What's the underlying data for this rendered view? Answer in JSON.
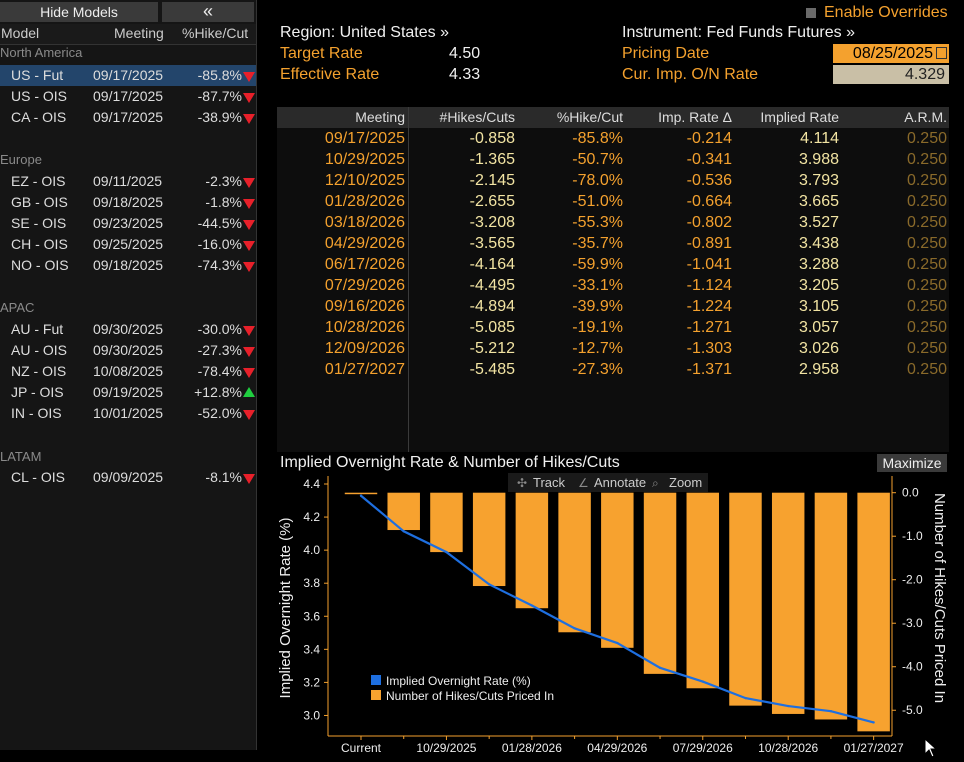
{
  "sidebar": {
    "hide_models_label": "Hide Models",
    "collapse_label": "«",
    "header": {
      "model": "Model",
      "meeting": "Meeting",
      "pct": "%Hike/Cut"
    },
    "groups": [
      {
        "label": "North America",
        "rows": [
          {
            "model": "US - Fut",
            "meeting": "09/17/2025",
            "pct": "-85.8%",
            "dir": "down",
            "selected": true
          },
          {
            "model": "US - OIS",
            "meeting": "09/17/2025",
            "pct": "-87.7%",
            "dir": "down"
          },
          {
            "model": "CA - OIS",
            "meeting": "09/17/2025",
            "pct": "-38.9%",
            "dir": "down"
          }
        ]
      },
      {
        "label": "Europe",
        "rows": [
          {
            "model": "EZ - OIS",
            "meeting": "09/11/2025",
            "pct": "-2.3%",
            "dir": "down"
          },
          {
            "model": "GB - OIS",
            "meeting": "09/18/2025",
            "pct": "-1.8%",
            "dir": "down"
          },
          {
            "model": "SE - OIS",
            "meeting": "09/23/2025",
            "pct": "-44.5%",
            "dir": "down"
          },
          {
            "model": "CH - OIS",
            "meeting": "09/25/2025",
            "pct": "-16.0%",
            "dir": "down"
          },
          {
            "model": "NO - OIS",
            "meeting": "09/18/2025",
            "pct": "-74.3%",
            "dir": "down"
          }
        ]
      },
      {
        "label": "APAC",
        "rows": [
          {
            "model": "AU - Fut",
            "meeting": "09/30/2025",
            "pct": "-30.0%",
            "dir": "down"
          },
          {
            "model": "AU - OIS",
            "meeting": "09/30/2025",
            "pct": "-27.3%",
            "dir": "down"
          },
          {
            "model": "NZ - OIS",
            "meeting": "10/08/2025",
            "pct": "-78.4%",
            "dir": "down"
          },
          {
            "model": "JP - OIS",
            "meeting": "09/19/2025",
            "pct": "+12.8%",
            "dir": "up"
          },
          {
            "model": "IN - OIS",
            "meeting": "10/01/2025",
            "pct": "-52.0%",
            "dir": "down"
          }
        ]
      },
      {
        "label": "LATAM",
        "rows": [
          {
            "model": "CL - OIS",
            "meeting": "09/09/2025",
            "pct": "-8.1%",
            "dir": "down"
          }
        ]
      }
    ]
  },
  "info": {
    "region": "Region: United States »",
    "instrument": "Instrument: Fed Funds Futures »",
    "enable_overrides": "Enable Overrides",
    "target_rate_label": "Target Rate",
    "target_rate_value": "4.50",
    "effective_rate_label": "Effective Rate",
    "effective_rate_value": "4.33",
    "pricing_date_label": "Pricing Date",
    "pricing_date_value": "08/25/2025",
    "cur_imp_label": "Cur. Imp. O/N Rate",
    "cur_imp_value": "4.329"
  },
  "table": {
    "headers": [
      "Meeting",
      "#Hikes/Cuts",
      "%Hike/Cut",
      "Imp. Rate Δ",
      "Implied Rate",
      "A.R.M."
    ],
    "rows": [
      [
        "09/17/2025",
        "-0.858",
        "-85.8%",
        "-0.214",
        "4.114",
        "0.250"
      ],
      [
        "10/29/2025",
        "-1.365",
        "-50.7%",
        "-0.341",
        "3.988",
        "0.250"
      ],
      [
        "12/10/2025",
        "-2.145",
        "-78.0%",
        "-0.536",
        "3.793",
        "0.250"
      ],
      [
        "01/28/2026",
        "-2.655",
        "-51.0%",
        "-0.664",
        "3.665",
        "0.250"
      ],
      [
        "03/18/2026",
        "-3.208",
        "-55.3%",
        "-0.802",
        "3.527",
        "0.250"
      ],
      [
        "04/29/2026",
        "-3.565",
        "-35.7%",
        "-0.891",
        "3.438",
        "0.250"
      ],
      [
        "06/17/2026",
        "-4.164",
        "-59.9%",
        "-1.041",
        "3.288",
        "0.250"
      ],
      [
        "07/29/2026",
        "-4.495",
        "-33.1%",
        "-1.124",
        "3.205",
        "0.250"
      ],
      [
        "09/16/2026",
        "-4.894",
        "-39.9%",
        "-1.224",
        "3.105",
        "0.250"
      ],
      [
        "10/28/2026",
        "-5.085",
        "-19.1%",
        "-1.271",
        "3.057",
        "0.250"
      ],
      [
        "12/09/2026",
        "-5.212",
        "-12.7%",
        "-1.303",
        "3.026",
        "0.250"
      ],
      [
        "01/27/2027",
        "-5.485",
        "-27.3%",
        "-1.371",
        "2.958",
        "0.250"
      ]
    ]
  },
  "chart": {
    "maximize_label": "Maximize",
    "tools": {
      "track": "Track",
      "annotate": "Annotate",
      "zoom": "Zoom"
    }
  },
  "chart_data": {
    "type": "bar",
    "title": "Implied Overnight Rate & Number of Hikes/Cuts",
    "categories": [
      "Current",
      "09/17/2025",
      "10/29/2025",
      "12/10/2025",
      "01/28/2026",
      "03/18/2026",
      "04/29/2026",
      "06/17/2026",
      "07/29/2026",
      "09/16/2026",
      "10/28/2026",
      "12/09/2026",
      "01/27/2027"
    ],
    "x_tick_labels": [
      "Current",
      "10/29/2025",
      "01/28/2026",
      "04/29/2026",
      "07/29/2026",
      "10/28/2026",
      "01/27/2027"
    ],
    "ylabel_left": "Implied Overnight Rate (%)",
    "ylabel_right": "Number of Hikes/Cuts Priced In",
    "ylim_left": [
      2.9,
      4.4
    ],
    "yticks_left": [
      3.0,
      3.2,
      3.4,
      3.6,
      3.8,
      4.0,
      4.2,
      4.4
    ],
    "ylim_right": [
      -5.5,
      0.2
    ],
    "yticks_right": [
      0.0,
      -1.0,
      -2.0,
      -3.0,
      -4.0,
      -5.0
    ],
    "grid": false,
    "legend_position": "bottom-left",
    "series": [
      {
        "name": "Implied Overnight Rate (%)",
        "type": "line",
        "axis": "left",
        "color": "#1e6fe0",
        "values": [
          4.329,
          4.114,
          3.988,
          3.793,
          3.665,
          3.527,
          3.438,
          3.288,
          3.205,
          3.105,
          3.057,
          3.026,
          2.958
        ]
      },
      {
        "name": "Number of Hikes/Cuts Priced In",
        "type": "bar",
        "axis": "right",
        "color": "#f7a22f",
        "values": [
          0,
          -0.858,
          -1.365,
          -2.145,
          -2.655,
          -3.208,
          -3.565,
          -4.164,
          -4.495,
          -4.894,
          -5.085,
          -5.212,
          -5.485
        ]
      }
    ]
  }
}
